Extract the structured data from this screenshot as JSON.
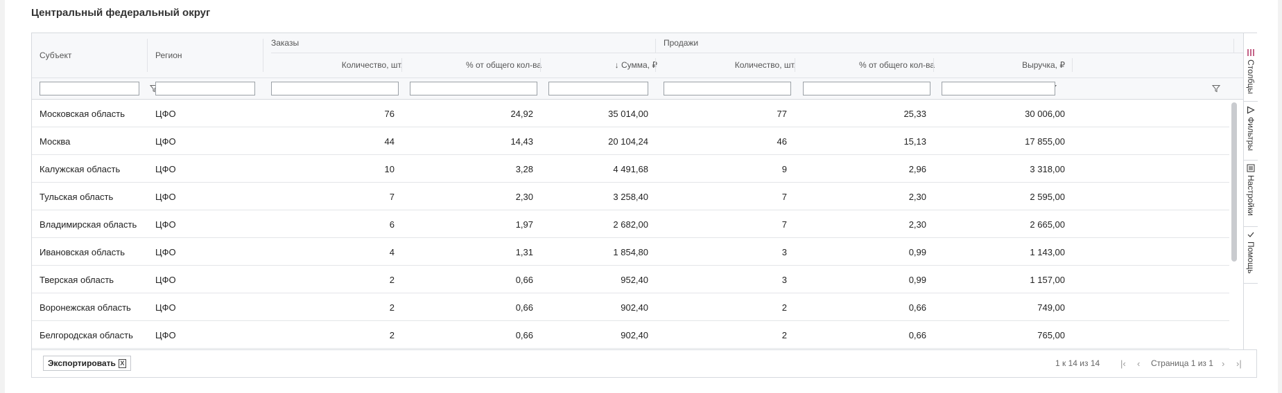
{
  "title": "Центральный федеральный округ",
  "header": {
    "subject": "Субъект",
    "region": "Регион",
    "orders_group": "Заказы",
    "sales_group": "Продажи",
    "columns": [
      "Количество, шт.",
      "% от общего кол-ва",
      "↓ Сумма, ₽",
      "Количество, шт.",
      "% от общего кол-ва",
      "Выручка, ₽"
    ]
  },
  "filter_icon": "funnel-icon",
  "rows": [
    [
      "Московская область",
      "ЦФО",
      "76",
      "24,92",
      "35 014,00",
      "77",
      "25,33",
      "30 006,00"
    ],
    [
      "Москва",
      "ЦФО",
      "44",
      "14,43",
      "20 104,24",
      "46",
      "15,13",
      "17 855,00"
    ],
    [
      "Калужская область",
      "ЦФО",
      "10",
      "3,28",
      "4 491,68",
      "9",
      "2,96",
      "3 318,00"
    ],
    [
      "Тульская область",
      "ЦФО",
      "7",
      "2,30",
      "3 258,40",
      "7",
      "2,30",
      "2 595,00"
    ],
    [
      "Владимирская область",
      "ЦФО",
      "6",
      "1,97",
      "2 682,00",
      "7",
      "2,30",
      "2 665,00"
    ],
    [
      "Ивановская область",
      "ЦФО",
      "4",
      "1,31",
      "1 854,80",
      "3",
      "0,99",
      "1 143,00"
    ],
    [
      "Тверская область",
      "ЦФО",
      "2",
      "0,66",
      "952,40",
      "3",
      "0,99",
      "1 157,00"
    ],
    [
      "Воронежская область",
      "ЦФО",
      "2",
      "0,66",
      "902,40",
      "2",
      "0,66",
      "749,00"
    ],
    [
      "Белгородская область",
      "ЦФО",
      "2",
      "0,66",
      "902,40",
      "2",
      "0,66",
      "765,00"
    ]
  ],
  "sidebar": {
    "columns_label": "Столбцы",
    "filters_label": "Фильтры",
    "settings_label": "Настройки",
    "help_label": "Помощь"
  },
  "footer": {
    "export_label": "Экспортировать",
    "export_icon_text": "X",
    "range_text": "1 к 14 из 14",
    "page_text": "Страница 1 из 1",
    "first_icon": "|‹",
    "prev_icon": "‹",
    "next_icon": "›",
    "last_icon": "›|"
  },
  "colors": {
    "border": "#d6d9de",
    "header_bg": "#f7f8fa",
    "text": "#222222"
  }
}
